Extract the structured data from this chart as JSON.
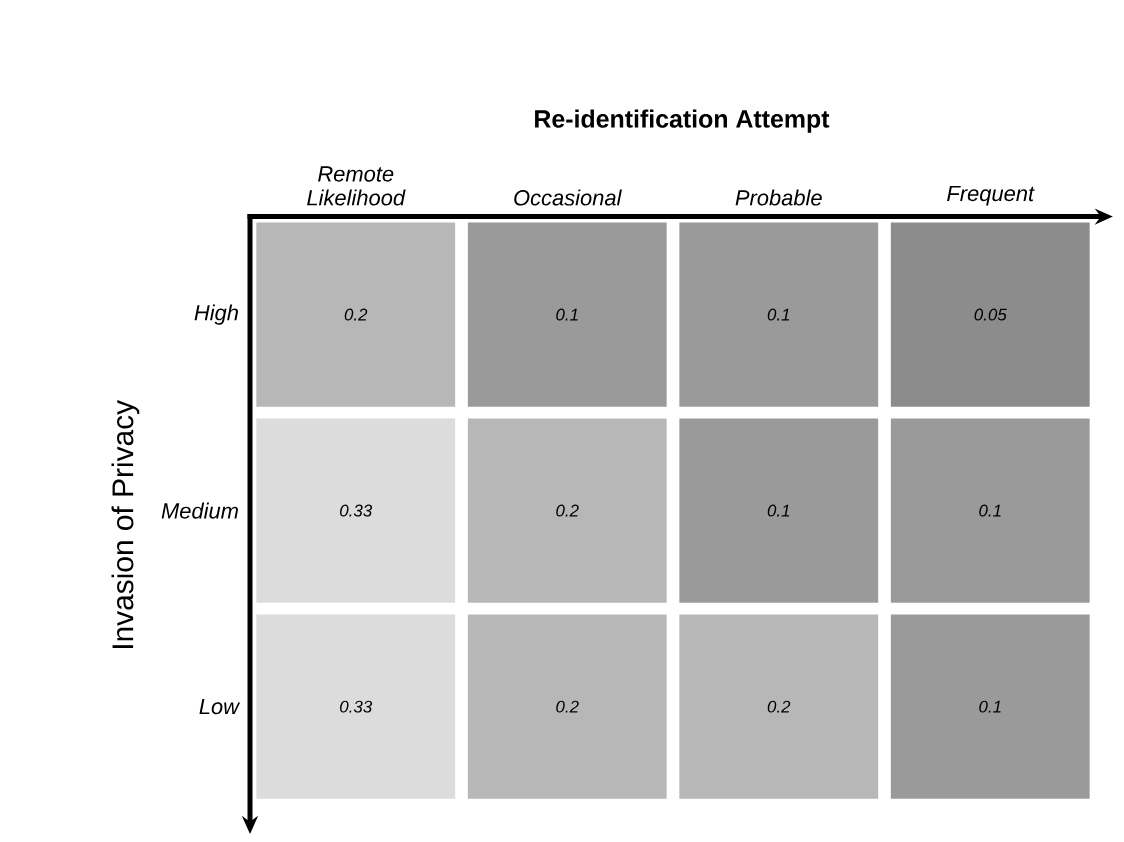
{
  "chart_data": {
    "type": "heatmap",
    "xlabel": "Re-identification Attempt",
    "ylabel": "Invasion of Privacy",
    "categories": [
      "Remote Likelihood",
      "Occasional",
      "Probable",
      "Frequent"
    ],
    "y_categories": [
      "High",
      "Medium",
      "Low"
    ],
    "cells": [
      [
        0.2,
        0.1,
        0.1,
        0.05
      ],
      [
        0.33,
        0.2,
        0.1,
        0.1
      ],
      [
        0.33,
        0.2,
        0.2,
        0.1
      ]
    ],
    "data_labels": true
  }
}
